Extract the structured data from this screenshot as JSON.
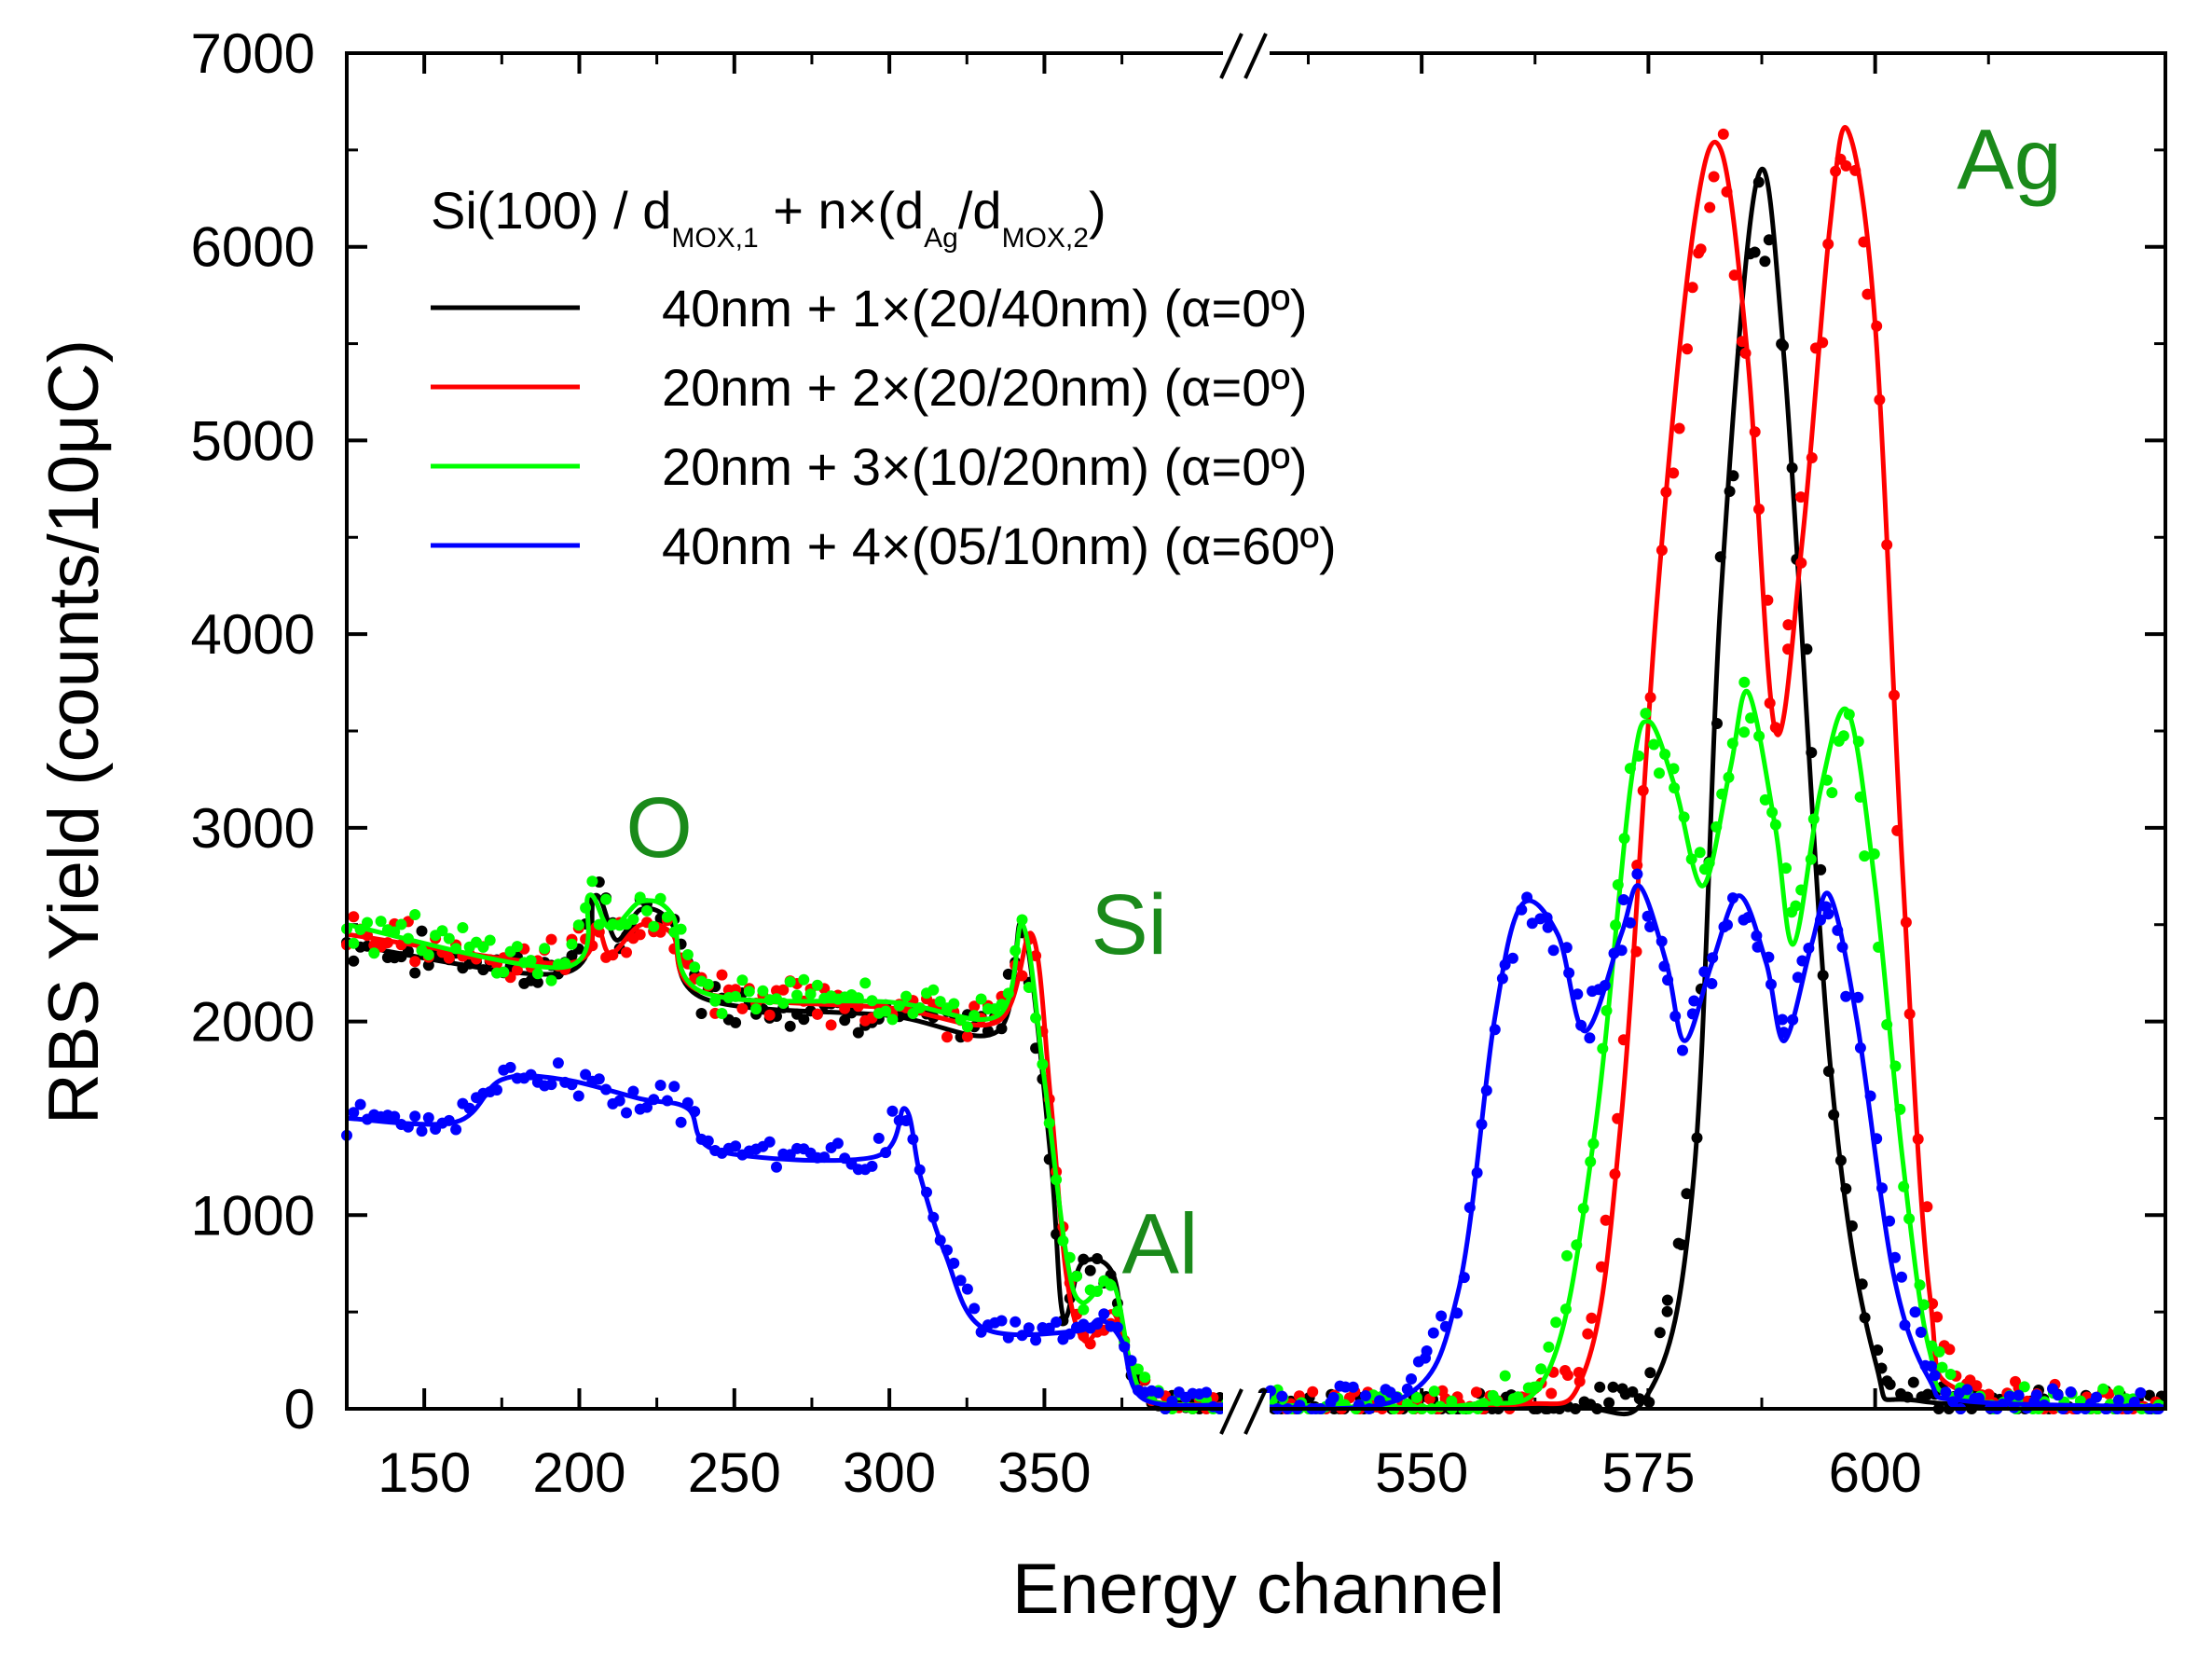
{
  "chart_data": {
    "type": "scatter",
    "title": "",
    "xlabel": "Energy channel",
    "ylabel": "RBS Yield (counts/10μC)",
    "ylim": [
      0,
      7000
    ],
    "yticks": [
      "0",
      "1000",
      "2000",
      "3000",
      "4000",
      "5000",
      "6000",
      "7000"
    ],
    "xlim_left": [
      125,
      410
    ],
    "xlim_right": [
      532,
      632
    ],
    "xticks_left": [
      "150",
      "200",
      "250",
      "300",
      "350"
    ],
    "xticks_right": [
      "550",
      "575",
      "600"
    ],
    "axis_break": "between 410 and 532",
    "legend": {
      "position": "top-left",
      "title_main": "Si(100) / d",
      "title_sub1": "MOX,1",
      "title_mid": " + n×(d",
      "title_sub2": "Ag",
      "title_mid2": "/d",
      "title_sub3": "MOX,2",
      "title_end": ")"
    },
    "series": [
      {
        "name": "40nm + 1×(20/40nm) (α=0º)",
        "color": "#000000",
        "left": [
          [
            125,
            2400
          ],
          [
            195,
            2250
          ],
          [
            205,
            2650
          ],
          [
            212,
            2420
          ],
          [
            220,
            2580
          ],
          [
            230,
            2500
          ],
          [
            240,
            2120
          ],
          [
            300,
            2030
          ],
          [
            335,
            1950
          ],
          [
            343,
            2500
          ],
          [
            352,
            1300
          ],
          [
            356,
            480
          ],
          [
            362,
            750
          ],
          [
            372,
            700
          ],
          [
            377,
            250
          ],
          [
            385,
            30
          ],
          [
            410,
            20
          ]
        ],
        "right": [
          [
            532,
            5
          ],
          [
            565,
            10
          ],
          [
            575,
            80
          ],
          [
            580,
            1200
          ],
          [
            583,
            4200
          ],
          [
            587,
            6350
          ],
          [
            590,
            5400
          ],
          [
            595,
            1800
          ],
          [
            600,
            250
          ],
          [
            605,
            40
          ],
          [
            632,
            10
          ]
        ]
      },
      {
        "name": "20nm + 2×(20/20nm) (α=0º)",
        "color": "#ff0000",
        "left": [
          [
            125,
            2450
          ],
          [
            195,
            2300
          ],
          [
            205,
            2500
          ],
          [
            210,
            2350
          ],
          [
            220,
            2500
          ],
          [
            230,
            2450
          ],
          [
            240,
            2150
          ],
          [
            300,
            2070
          ],
          [
            335,
            2000
          ],
          [
            346,
            2450
          ],
          [
            352,
            1600
          ],
          [
            357,
            700
          ],
          [
            363,
            350
          ],
          [
            372,
            500
          ],
          [
            378,
            200
          ],
          [
            385,
            40
          ],
          [
            410,
            20
          ]
        ],
        "right": [
          [
            532,
            10
          ],
          [
            560,
            20
          ],
          [
            568,
            200
          ],
          [
            572,
            1500
          ],
          [
            576,
            4200
          ],
          [
            580,
            6100
          ],
          [
            583,
            6500
          ],
          [
            586,
            5400
          ],
          [
            589,
            3500
          ],
          [
            592,
            4500
          ],
          [
            595,
            6100
          ],
          [
            597,
            6600
          ],
          [
            600,
            5600
          ],
          [
            603,
            2800
          ],
          [
            606,
            600
          ],
          [
            610,
            80
          ],
          [
            632,
            10
          ]
        ]
      },
      {
        "name": "20nm + 3×(10/20nm) (α=0º)",
        "color": "#00ff00",
        "left": [
          [
            125,
            2500
          ],
          [
            195,
            2280
          ],
          [
            203,
            2650
          ],
          [
            210,
            2480
          ],
          [
            220,
            2620
          ],
          [
            230,
            2550
          ],
          [
            240,
            2150
          ],
          [
            300,
            2100
          ],
          [
            335,
            2030
          ],
          [
            343,
            2500
          ],
          [
            350,
            1700
          ],
          [
            357,
            800
          ],
          [
            362,
            550
          ],
          [
            372,
            650
          ],
          [
            378,
            220
          ],
          [
            385,
            40
          ],
          [
            410,
            20
          ]
        ],
        "right": [
          [
            532,
            20
          ],
          [
            555,
            20
          ],
          [
            564,
            200
          ],
          [
            569,
            1400
          ],
          [
            573,
            3200
          ],
          [
            575,
            3550
          ],
          [
            578,
            3200
          ],
          [
            581,
            2700
          ],
          [
            584,
            3300
          ],
          [
            586,
            3700
          ],
          [
            589,
            3000
          ],
          [
            591,
            2400
          ],
          [
            594,
            3200
          ],
          [
            597,
            3600
          ],
          [
            600,
            2700
          ],
          [
            603,
            1300
          ],
          [
            606,
            300
          ],
          [
            610,
            50
          ],
          [
            632,
            10
          ]
        ]
      },
      {
        "name": "40nm + 4×(05/10nm) (α=60º)",
        "color": "#0000ff",
        "left": [
          [
            125,
            1500
          ],
          [
            160,
            1480
          ],
          [
            175,
            1700
          ],
          [
            195,
            1700
          ],
          [
            220,
            1600
          ],
          [
            235,
            1550
          ],
          [
            245,
            1330
          ],
          [
            295,
            1300
          ],
          [
            305,
            1550
          ],
          [
            310,
            1200
          ],
          [
            318,
            800
          ],
          [
            330,
            420
          ],
          [
            360,
            400
          ],
          [
            368,
            460
          ],
          [
            375,
            350
          ],
          [
            382,
            50
          ],
          [
            410,
            20
          ]
        ],
        "right": [
          [
            532,
            10
          ],
          [
            548,
            60
          ],
          [
            554,
            600
          ],
          [
            558,
            2000
          ],
          [
            561,
            2600
          ],
          [
            565,
            2450
          ],
          [
            568,
            1950
          ],
          [
            572,
            2450
          ],
          [
            574,
            2700
          ],
          [
            577,
            2300
          ],
          [
            579,
            1900
          ],
          [
            582,
            2300
          ],
          [
            585,
            2650
          ],
          [
            588,
            2300
          ],
          [
            590,
            1900
          ],
          [
            593,
            2400
          ],
          [
            595,
            2650
          ],
          [
            598,
            2000
          ],
          [
            602,
            700
          ],
          [
            606,
            150
          ],
          [
            610,
            40
          ],
          [
            632,
            10
          ]
        ]
      }
    ],
    "annotations": [
      {
        "text": "O",
        "x": 215,
        "y": 2850
      },
      {
        "text": "Si",
        "x": 365,
        "y": 2350
      },
      {
        "text": "Al",
        "x": 375,
        "y": 700
      },
      {
        "text": "Ag",
        "x": 609,
        "y": 6300
      }
    ]
  }
}
